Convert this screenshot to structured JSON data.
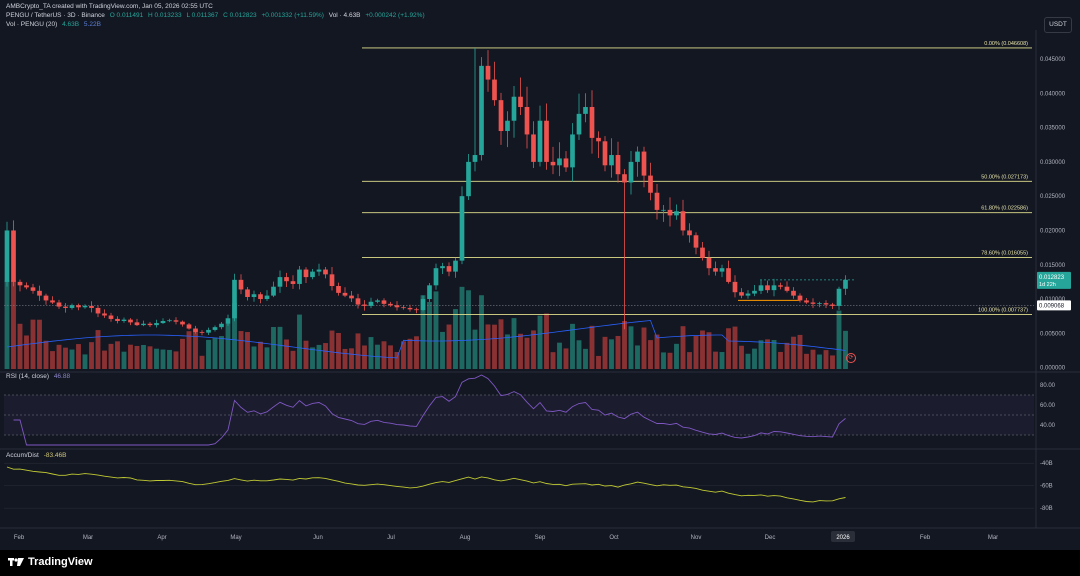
{
  "header": {
    "created_by": "AMBCrypto_TA created with TradingView.com, Jan 05, 2026 02:55 UTC",
    "symbol": "PENGU / TetherUS · 3D · Binance",
    "ohlc": {
      "o": "O 0.011491",
      "h": "H 0.013233",
      "l": "L 0.011367",
      "c": "C 0.012823",
      "chg": "+0.001332 (+11.59%)"
    },
    "vol_label": "Vol · 4.63B",
    "vol_change": "+0.000242 (+1.92%)",
    "vol_pengu_label": "Vol · PENGU (20)",
    "vol_pengu_v1": "4.63B",
    "vol_pengu_v2": "5.22B"
  },
  "currency": "USDT",
  "rsi_legend": {
    "name": "RSI (14, close)",
    "value": "46.88"
  },
  "ad_legend": {
    "name": "Accum/Dist",
    "value": "-83.46B"
  },
  "footer": {
    "brand": "TradingView"
  },
  "colors": {
    "up": "#26a69a",
    "down": "#ef5350",
    "fib": "#e3e08d",
    "rsi": "#7e57c2",
    "ad": "#c0ca33",
    "ma": "#2962ff"
  },
  "chart_data": {
    "type": "candlestick",
    "price_ticks": [
      "0.045000",
      "0.040000",
      "0.035000",
      "0.030000",
      "0.025000",
      "0.020000",
      "0.015000",
      "0.010000",
      "0.005000",
      "0.000000"
    ],
    "price_tick_values": [
      0.045,
      0.04,
      0.035,
      0.03,
      0.025,
      0.02,
      0.015,
      0.01,
      0.005,
      0.0
    ],
    "price_range": [
      -0.0002,
      0.0485
    ],
    "current_price": "0.012823",
    "countdown": "1d 22h",
    "marker_price": "0.009068",
    "marker_price_value": 0.009068,
    "fib_levels": [
      {
        "label": "0.00% (0.046608)",
        "value": 0.046608
      },
      {
        "label": "50.00% (0.027173)",
        "value": 0.027173
      },
      {
        "label": "61.80% (0.022586)",
        "value": 0.022586
      },
      {
        "label": "78.60% (0.016055)",
        "value": 0.016055
      },
      {
        "label": "100.00% (0.007737)",
        "value": 0.007737
      }
    ],
    "x_labels": [
      "Feb",
      "Mar",
      "Apr",
      "May",
      "Jun",
      "Jul",
      "Aug",
      "Sep",
      "Oct",
      "Nov",
      "Dec",
      "2026",
      "Feb",
      "Mar"
    ],
    "closes": [
      0.02,
      0.0125,
      0.012,
      0.0117,
      0.0112,
      0.0105,
      0.0098,
      0.0095,
      0.0089,
      0.0087,
      0.0091,
      0.0088,
      0.009,
      0.0087,
      0.0079,
      0.0076,
      0.0071,
      0.0068,
      0.007,
      0.0066,
      0.0062,
      0.0064,
      0.0062,
      0.0065,
      0.0068,
      0.0069,
      0.0067,
      0.0063,
      0.0057,
      0.0052,
      0.0051,
      0.0055,
      0.0059,
      0.0064,
      0.0072,
      0.0128,
      0.0114,
      0.0103,
      0.0107,
      0.01,
      0.0105,
      0.0118,
      0.0132,
      0.0126,
      0.0122,
      0.0143,
      0.0132,
      0.014,
      0.0143,
      0.0136,
      0.0119,
      0.0109,
      0.0105,
      0.0101,
      0.0092,
      0.009,
      0.0096,
      0.0098,
      0.0093,
      0.0091,
      0.0088,
      0.0087,
      0.0085,
      0.0084,
      0.01,
      0.012,
      0.0145,
      0.0148,
      0.014,
      0.0156,
      0.025,
      0.03,
      0.031,
      0.044,
      0.042,
      0.039,
      0.0345,
      0.036,
      0.0395,
      0.038,
      0.034,
      0.03,
      0.036,
      0.03,
      0.0295,
      0.0305,
      0.0292,
      0.034,
      0.037,
      0.038,
      0.0335,
      0.033,
      0.0295,
      0.031,
      0.0282,
      0.027,
      0.03,
      0.0315,
      0.028,
      0.0255,
      0.023,
      0.023,
      0.0222,
      0.0228,
      0.02,
      0.0193,
      0.0175,
      0.016,
      0.0145,
      0.014,
      0.0145,
      0.0125,
      0.011,
      0.0105,
      0.0108,
      0.0112,
      0.012,
      0.0113,
      0.012,
      0.0118,
      0.0112,
      0.0105,
      0.0098,
      0.0095,
      0.0093,
      0.0094,
      0.0092,
      0.009,
      0.0115,
      0.0128
    ],
    "volume_ma_label": "Vol · PENGU (20)",
    "rsi_ticks": [
      "80.00",
      "60.00",
      "40.00"
    ],
    "rsi_tick_values": [
      80,
      60,
      40
    ],
    "rsi_range": [
      20,
      90
    ],
    "rsi_band": [
      30,
      70
    ],
    "rsi_last": 46.88,
    "ad_ticks": [
      "-40B",
      "-60B",
      "-80B"
    ],
    "ad_tick_values": [
      -40,
      -60,
      -80
    ],
    "ad_range": [
      -95,
      -30
    ],
    "ad_last": -83.46
  }
}
